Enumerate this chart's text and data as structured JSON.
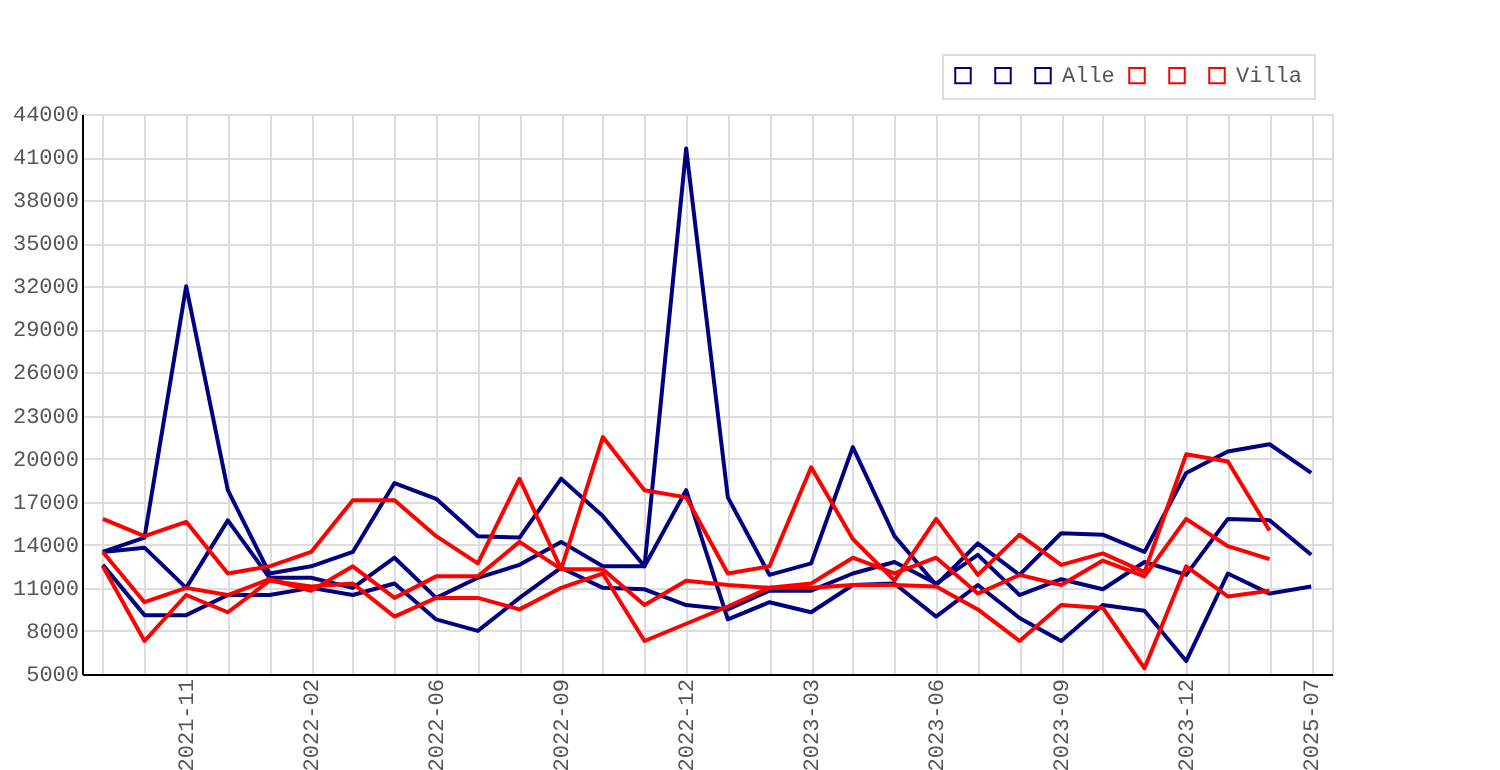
{
  "chart_data": {
    "type": "line",
    "categories": [
      null,
      null,
      "2021-11",
      null,
      null,
      "2022-02",
      null,
      null,
      "2022-06",
      null,
      null,
      "2022-09",
      null,
      null,
      "2022-12",
      null,
      null,
      "2023-03",
      null,
      null,
      "2023-06",
      null,
      null,
      "2023-09",
      null,
      null,
      "2023-12",
      null,
      null,
      "2025-07"
    ],
    "series": [
      {
        "color": "#000080",
        "values": [
          13500,
          14500,
          32000,
          17800,
          12000,
          12500,
          13500,
          18300,
          17200,
          14600,
          14500,
          18600,
          16000,
          12500,
          41600,
          17300,
          11900,
          12700,
          20800,
          14600,
          11200,
          14100,
          11900,
          14800,
          14700,
          13500,
          19000,
          20500,
          21000,
          19000
        ]
      },
      {
        "color": "#000080",
        "values": [
          13500,
          13800,
          11000,
          15700,
          11700,
          11700,
          11000,
          13100,
          10300,
          11700,
          12600,
          14200,
          12500,
          12500,
          17800,
          8800,
          10000,
          9300,
          11200,
          11300,
          9000,
          11200,
          8900,
          7300,
          9800,
          9400,
          5900,
          12000,
          10600,
          11100
        ]
      },
      {
        "name": "Alle",
        "color": "#000080",
        "values": [
          12600,
          9100,
          9100,
          10500,
          10500,
          11000,
          10500,
          11300,
          8800,
          8000,
          10300,
          12400,
          11000,
          10900,
          9800,
          9500,
          10800,
          10800,
          12000,
          12800,
          11300,
          13300,
          10500,
          11600,
          10900,
          12800,
          11900,
          15800,
          15700,
          13300
        ]
      },
      {
        "color": "#ff0000",
        "values": [
          15800,
          14600,
          15600,
          12000,
          12500,
          13500,
          17100,
          17100,
          14600,
          12700,
          18600,
          12300,
          21500,
          17800,
          17300,
          12000,
          12500,
          19400,
          14400,
          11500,
          15800,
          11900,
          14700,
          12600,
          13400,
          12100,
          20300,
          19800,
          15000,
          null
        ]
      },
      {
        "color": "#ff0000",
        "values": [
          13500,
          10000,
          11000,
          10500,
          11600,
          10800,
          12500,
          10300,
          11800,
          11800,
          14200,
          12300,
          12300,
          9800,
          11500,
          11200,
          11000,
          11300,
          13100,
          12000,
          13100,
          10600,
          11900,
          11200,
          12900,
          11800,
          15800,
          13900,
          13000,
          null
        ]
      },
      {
        "name": "Villa",
        "color": "#ff0000",
        "values": [
          12500,
          7300,
          10500,
          9300,
          11500,
          11100,
          11300,
          9000,
          10300,
          10300,
          9500,
          11000,
          12000,
          7300,
          8500,
          9700,
          11000,
          11000,
          11200,
          11200,
          11100,
          9500,
          7300,
          9800,
          9600,
          5400,
          12500,
          10400,
          10800,
          null
        ]
      }
    ],
    "ylim": [
      5000,
      44000
    ],
    "yticks": [
      5000,
      8000,
      11000,
      14000,
      17000,
      20000,
      23000,
      26000,
      29000,
      32000,
      35000,
      38000,
      41000,
      44000
    ],
    "grid": true,
    "legend": "top right"
  }
}
